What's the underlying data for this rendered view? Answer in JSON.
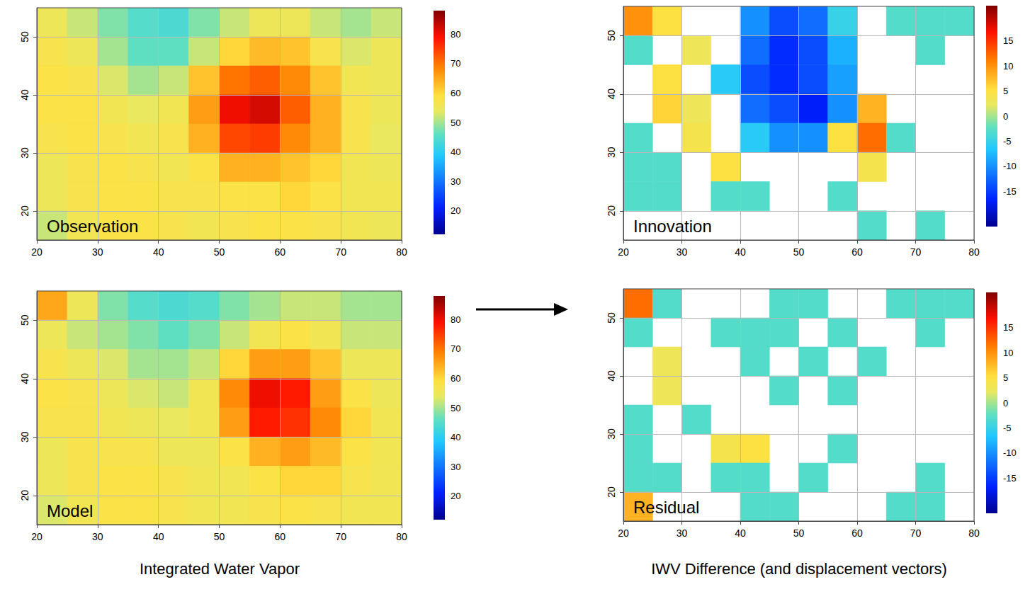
{
  "chart_data": [
    {
      "type": "heatmap",
      "title": "Observation",
      "xlim": [
        20,
        80
      ],
      "ylim": [
        15,
        55
      ],
      "xticks": [
        20,
        30,
        40,
        50,
        60,
        70,
        80
      ],
      "yticks": [
        20,
        30,
        40,
        50
      ],
      "grid": true,
      "x": [
        22.5,
        27.5,
        32.5,
        37.5,
        42.5,
        47.5,
        52.5,
        57.5,
        62.5,
        67.5,
        72.5,
        77.5
      ],
      "y": [
        52.5,
        47.5,
        42.5,
        37.5,
        32.5,
        27.5,
        22.5,
        17.5
      ],
      "values": [
        [
          55,
          52,
          48,
          45,
          44,
          48,
          52,
          55,
          55,
          52,
          50,
          52
        ],
        [
          57,
          55,
          50,
          46,
          46,
          52,
          60,
          63,
          62,
          57,
          53,
          55
        ],
        [
          58,
          57,
          53,
          50,
          52,
          62,
          70,
          72,
          68,
          62,
          56,
          55
        ],
        [
          58,
          58,
          56,
          54,
          56,
          66,
          80,
          82,
          72,
          64,
          57,
          55
        ],
        [
          57,
          58,
          57,
          56,
          57,
          64,
          74,
          75,
          68,
          64,
          57,
          54
        ],
        [
          55,
          57,
          58,
          57,
          56,
          58,
          64,
          64,
          62,
          60,
          56,
          55
        ],
        [
          55,
          57,
          58,
          58,
          57,
          57,
          58,
          58,
          60,
          58,
          56,
          56
        ],
        [
          52,
          56,
          58,
          58,
          57,
          56,
          57,
          58,
          58,
          57,
          56,
          55
        ]
      ],
      "colorbar_range": [
        12,
        88
      ],
      "colorbar_ticks": [
        20,
        30,
        40,
        50,
        60,
        70,
        80
      ]
    },
    {
      "type": "heatmap",
      "title": "Model",
      "xlim": [
        20,
        80
      ],
      "ylim": [
        15,
        55
      ],
      "xticks": [
        20,
        30,
        40,
        50,
        60,
        70,
        80
      ],
      "yticks": [
        20,
        30,
        40,
        50
      ],
      "grid": true,
      "x": [
        22.5,
        27.5,
        32.5,
        37.5,
        42.5,
        47.5,
        52.5,
        57.5,
        62.5,
        67.5,
        72.5,
        77.5
      ],
      "y": [
        52.5,
        47.5,
        42.5,
        37.5,
        32.5,
        27.5,
        22.5,
        17.5
      ],
      "values": [
        [
          65,
          55,
          48,
          45,
          44,
          45,
          48,
          50,
          52,
          52,
          50,
          50
        ],
        [
          55,
          52,
          50,
          48,
          46,
          48,
          52,
          56,
          58,
          56,
          52,
          52
        ],
        [
          57,
          55,
          53,
          50,
          50,
          52,
          60,
          66,
          66,
          62,
          55,
          55
        ],
        [
          58,
          57,
          55,
          53,
          52,
          56,
          68,
          80,
          78,
          66,
          58,
          55
        ],
        [
          57,
          57,
          56,
          55,
          54,
          56,
          66,
          78,
          76,
          68,
          60,
          56
        ],
        [
          55,
          57,
          57,
          57,
          55,
          55,
          58,
          64,
          66,
          63,
          58,
          56
        ],
        [
          55,
          57,
          58,
          58,
          57,
          56,
          56,
          58,
          60,
          60,
          57,
          56
        ],
        [
          53,
          56,
          58,
          58,
          57,
          56,
          56,
          57,
          58,
          57,
          56,
          56
        ]
      ],
      "colorbar_range": [
        12,
        88
      ],
      "colorbar_ticks": [
        20,
        30,
        40,
        50,
        60,
        70,
        80
      ]
    },
    {
      "type": "heatmap",
      "title": "Innovation",
      "xlim": [
        20,
        80
      ],
      "ylim": [
        15,
        55
      ],
      "xticks": [
        20,
        30,
        40,
        50,
        60,
        70,
        80
      ],
      "yticks": [
        20,
        30,
        40,
        50
      ],
      "grid": true,
      "x": [
        22.5,
        27.5,
        32.5,
        37.5,
        42.5,
        47.5,
        52.5,
        57.5,
        62.5,
        67.5,
        72.5,
        77.5
      ],
      "y": [
        52.5,
        47.5,
        42.5,
        37.5,
        32.5,
        27.5,
        22.5,
        17.5
      ],
      "values": [
        [
          10,
          5,
          null,
          null,
          -10,
          -14,
          -12,
          -5,
          null,
          -3,
          -3,
          -3
        ],
        [
          -3,
          null,
          3,
          null,
          -12,
          -16,
          -14,
          -8,
          null,
          null,
          -3,
          null
        ],
        [
          null,
          5,
          null,
          -6,
          -14,
          -16,
          -14,
          -9,
          null,
          null,
          null,
          null
        ],
        [
          null,
          6,
          3,
          null,
          -12,
          -14,
          -17,
          -10,
          8,
          null,
          null,
          null
        ],
        [
          -3,
          null,
          4,
          null,
          -6,
          -10,
          -10,
          5,
          12,
          -3,
          null,
          null
        ],
        [
          -3,
          -3,
          null,
          5,
          null,
          null,
          null,
          null,
          4,
          null,
          null,
          null
        ],
        [
          -3,
          -3,
          null,
          -3,
          -3,
          null,
          null,
          -3,
          null,
          null,
          null,
          null
        ],
        [
          null,
          null,
          null,
          null,
          null,
          null,
          null,
          null,
          -3,
          null,
          -3,
          null
        ]
      ],
      "colorbar_range": [
        -22,
        22
      ],
      "colorbar_ticks": [
        -15,
        -10,
        -5,
        0,
        5,
        10,
        15
      ]
    },
    {
      "type": "heatmap",
      "title": "Residual",
      "xlim": [
        20,
        80
      ],
      "ylim": [
        15,
        55
      ],
      "xticks": [
        20,
        30,
        40,
        50,
        60,
        70,
        80
      ],
      "yticks": [
        20,
        30,
        40,
        50
      ],
      "grid": true,
      "x": [
        22.5,
        27.5,
        32.5,
        37.5,
        42.5,
        47.5,
        52.5,
        57.5,
        62.5,
        67.5,
        72.5,
        77.5
      ],
      "y": [
        52.5,
        47.5,
        42.5,
        37.5,
        32.5,
        27.5,
        22.5,
        17.5
      ],
      "values": [
        [
          12,
          -3,
          null,
          null,
          null,
          -3,
          -3,
          null,
          null,
          -3,
          -3,
          -3
        ],
        [
          -3,
          null,
          null,
          -3,
          -3,
          -3,
          null,
          -3,
          null,
          null,
          -3,
          null
        ],
        [
          null,
          3,
          null,
          null,
          -3,
          null,
          -3,
          null,
          -3,
          null,
          null,
          null
        ],
        [
          null,
          3,
          null,
          null,
          null,
          -3,
          null,
          -3,
          null,
          null,
          null,
          null
        ],
        [
          -3,
          null,
          -3,
          null,
          null,
          null,
          null,
          null,
          null,
          null,
          null,
          null
        ],
        [
          -3,
          null,
          null,
          4,
          5,
          null,
          null,
          -3,
          null,
          null,
          null,
          null
        ],
        [
          -3,
          -3,
          null,
          -3,
          -3,
          null,
          -3,
          null,
          null,
          null,
          -3,
          null
        ],
        [
          8,
          null,
          null,
          null,
          -3,
          -3,
          null,
          null,
          null,
          -3,
          -3,
          null
        ]
      ],
      "colorbar_range": [
        -22,
        22
      ],
      "colorbar_ticks": [
        -15,
        -10,
        -5,
        0,
        5,
        10,
        15
      ]
    }
  ],
  "captions": [
    "Integrated Water Vapor",
    "IWV Difference (and displacement vectors)"
  ]
}
